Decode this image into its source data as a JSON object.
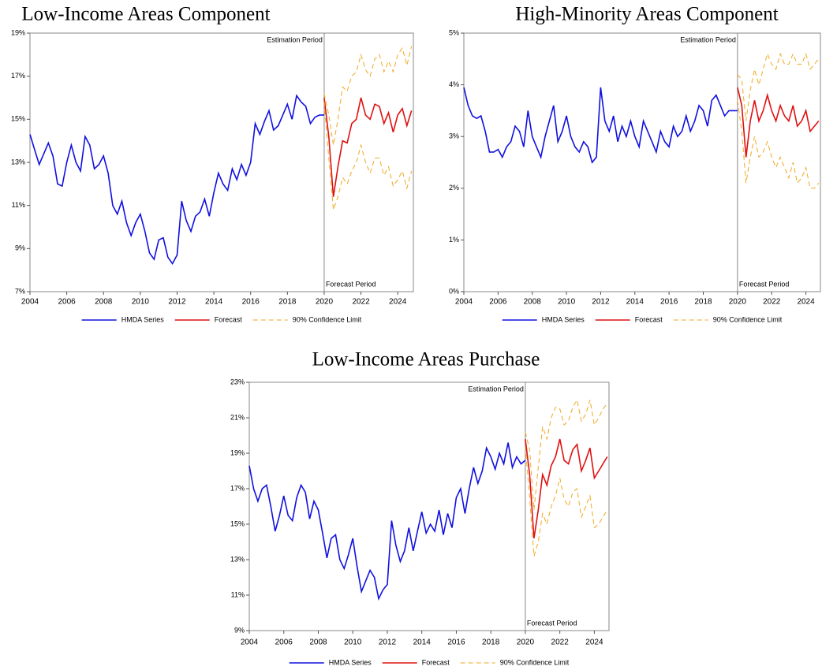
{
  "chart_data": [
    {
      "type": "line",
      "title": "Low-Income Areas Component",
      "xlim": [
        2004,
        2024.85
      ],
      "xticks": [
        2004,
        2006,
        2008,
        2010,
        2012,
        2014,
        2016,
        2018,
        2020,
        2022,
        2024
      ],
      "ylim": [
        7,
        19
      ],
      "yticks": [
        {
          "value": 7,
          "label": "7%"
        },
        {
          "value": 9,
          "label": "9%"
        },
        {
          "value": 11,
          "label": "11%"
        },
        {
          "value": 13,
          "label": "13%"
        },
        {
          "value": 15,
          "label": "15%"
        },
        {
          "value": 17,
          "label": "17%"
        },
        {
          "value": 19,
          "label": "19%"
        }
      ],
      "period_split": 2020,
      "annotations": [
        "Estimation Period",
        "Forecast Period"
      ],
      "series": [
        {
          "name": "HMDA Series",
          "color": "#1010e0",
          "style": "solid",
          "x": [
            2004,
            2004.25,
            2004.5,
            2004.75,
            2005,
            2005.25,
            2005.5,
            2005.75,
            2006,
            2006.25,
            2006.5,
            2006.75,
            2007,
            2007.25,
            2007.5,
            2007.75,
            2008,
            2008.25,
            2008.5,
            2008.75,
            2009,
            2009.25,
            2009.5,
            2009.75,
            2010,
            2010.25,
            2010.5,
            2010.75,
            2011,
            2011.25,
            2011.5,
            2011.75,
            2012,
            2012.25,
            2012.5,
            2012.75,
            2013,
            2013.25,
            2013.5,
            2013.75,
            2014,
            2014.25,
            2014.5,
            2014.75,
            2015,
            2015.25,
            2015.5,
            2015.75,
            2016,
            2016.25,
            2016.5,
            2016.75,
            2017,
            2017.25,
            2017.5,
            2017.75,
            2018,
            2018.25,
            2018.5,
            2018.75,
            2019,
            2019.25,
            2019.5,
            2019.75,
            2020
          ],
          "values": [
            14.3,
            13.6,
            12.9,
            13.4,
            13.9,
            13.3,
            12.0,
            11.9,
            13.0,
            13.8,
            13.0,
            12.6,
            14.2,
            13.8,
            12.7,
            12.9,
            13.3,
            12.5,
            11.0,
            10.6,
            11.2,
            10.2,
            9.6,
            10.2,
            10.6,
            9.8,
            8.8,
            8.5,
            9.4,
            9.5,
            8.6,
            8.3,
            8.7,
            11.2,
            10.3,
            9.8,
            10.5,
            10.7,
            11.3,
            10.5,
            11.6,
            12.5,
            12.0,
            11.7,
            12.7,
            12.2,
            12.9,
            12.4,
            13.0,
            14.8,
            14.3,
            14.9,
            15.4,
            14.5,
            14.7,
            15.2,
            15.7,
            15.0,
            16.1,
            15.8,
            15.6,
            14.8,
            15.1,
            15.2,
            15.2
          ]
        },
        {
          "name": "Forecast",
          "color": "#e01010",
          "style": "solid",
          "x": [
            2020,
            2020.25,
            2020.5,
            2020.75,
            2021,
            2021.25,
            2021.5,
            2021.75,
            2022,
            2022.25,
            2022.5,
            2022.75,
            2023,
            2023.25,
            2023.5,
            2023.75,
            2024,
            2024.25,
            2024.5,
            2024.75
          ],
          "values": [
            16.0,
            14.2,
            11.4,
            12.8,
            14.0,
            13.9,
            14.8,
            15.0,
            16.0,
            15.2,
            15.0,
            15.7,
            15.6,
            14.8,
            15.3,
            14.4,
            15.2,
            15.5,
            14.7,
            15.4
          ]
        },
        {
          "name": "90% Confidence Limit",
          "color": "#f0a820",
          "style": "dashed",
          "x": [
            2020,
            2020.25,
            2020.5,
            2020.75,
            2021,
            2021.25,
            2021.5,
            2021.75,
            2022,
            2022.25,
            2022.5,
            2022.75,
            2023,
            2023.25,
            2023.5,
            2023.75,
            2024,
            2024.25,
            2024.5,
            2024.75
          ],
          "values": [
            16.2,
            15.2,
            13.8,
            15.0,
            16.5,
            16.3,
            17.0,
            17.2,
            18.0,
            17.3,
            17.0,
            17.8,
            18.0,
            17.2,
            17.7,
            17.2,
            18.0,
            18.3,
            17.5,
            18.4
          ]
        },
        {
          "name": "90% Confidence Limit",
          "color": "#f0a820",
          "style": "dashed",
          "x": [
            2020,
            2020.25,
            2020.5,
            2020.75,
            2021,
            2021.25,
            2021.5,
            2021.75,
            2022,
            2022.25,
            2022.5,
            2022.75,
            2023,
            2023.25,
            2023.5,
            2023.75,
            2024,
            2024.25,
            2024.5,
            2024.75
          ],
          "values": [
            15.8,
            13.2,
            10.8,
            11.4,
            12.3,
            12.0,
            12.6,
            13.0,
            13.8,
            13.0,
            12.5,
            13.2,
            13.2,
            12.4,
            12.8,
            11.9,
            12.2,
            12.6,
            11.8,
            12.6
          ]
        }
      ]
    },
    {
      "type": "line",
      "title": "High-Minority Areas Component",
      "xlim": [
        2004,
        2024.85
      ],
      "xticks": [
        2004,
        2006,
        2008,
        2010,
        2012,
        2014,
        2016,
        2018,
        2020,
        2022,
        2024
      ],
      "ylim": [
        0,
        5
      ],
      "yticks": [
        {
          "value": 0,
          "label": "0%"
        },
        {
          "value": 1,
          "label": "1%"
        },
        {
          "value": 2,
          "label": "2%"
        },
        {
          "value": 3,
          "label": "3%"
        },
        {
          "value": 4,
          "label": "4%"
        },
        {
          "value": 5,
          "label": "5%"
        }
      ],
      "period_split": 2020,
      "annotations": [
        "Estimation Period",
        "Forecast Period"
      ],
      "series": [
        {
          "name": "HMDA Series",
          "color": "#1010e0",
          "style": "solid",
          "x": [
            2004,
            2004.25,
            2004.5,
            2004.75,
            2005,
            2005.25,
            2005.5,
            2005.75,
            2006,
            2006.25,
            2006.5,
            2006.75,
            2007,
            2007.25,
            2007.5,
            2007.75,
            2008,
            2008.25,
            2008.5,
            2008.75,
            2009,
            2009.25,
            2009.5,
            2009.75,
            2010,
            2010.25,
            2010.5,
            2010.75,
            2011,
            2011.25,
            2011.5,
            2011.75,
            2012,
            2012.25,
            2012.5,
            2012.75,
            2013,
            2013.25,
            2013.5,
            2013.75,
            2014,
            2014.25,
            2014.5,
            2014.75,
            2015,
            2015.25,
            2015.5,
            2015.75,
            2016,
            2016.25,
            2016.5,
            2016.75,
            2017,
            2017.25,
            2017.5,
            2017.75,
            2018,
            2018.25,
            2018.5,
            2018.75,
            2019,
            2019.25,
            2019.5,
            2019.75,
            2020
          ],
          "values": [
            3.95,
            3.6,
            3.4,
            3.35,
            3.4,
            3.1,
            2.7,
            2.7,
            2.75,
            2.6,
            2.8,
            2.9,
            3.2,
            3.1,
            2.8,
            3.5,
            3.0,
            2.8,
            2.6,
            3.0,
            3.3,
            3.6,
            2.9,
            3.1,
            3.4,
            3.0,
            2.8,
            2.7,
            2.9,
            2.8,
            2.5,
            2.6,
            3.95,
            3.3,
            3.1,
            3.4,
            2.9,
            3.2,
            3.0,
            3.3,
            3.0,
            2.8,
            3.3,
            3.1,
            2.9,
            2.7,
            3.1,
            2.9,
            2.8,
            3.2,
            3.0,
            3.1,
            3.4,
            3.1,
            3.3,
            3.6,
            3.5,
            3.2,
            3.7,
            3.8,
            3.6,
            3.4,
            3.5,
            3.5,
            3.5
          ]
        },
        {
          "name": "Forecast",
          "color": "#e01010",
          "style": "solid",
          "x": [
            2020,
            2020.25,
            2020.5,
            2020.75,
            2021,
            2021.25,
            2021.5,
            2021.75,
            2022,
            2022.25,
            2022.5,
            2022.75,
            2023,
            2023.25,
            2023.5,
            2023.75,
            2024,
            2024.25,
            2024.5,
            2024.75
          ],
          "values": [
            3.95,
            3.6,
            2.6,
            3.3,
            3.7,
            3.3,
            3.5,
            3.8,
            3.5,
            3.3,
            3.6,
            3.4,
            3.3,
            3.6,
            3.2,
            3.3,
            3.5,
            3.1,
            3.2,
            3.3
          ]
        },
        {
          "name": "90% Confidence Limit",
          "color": "#f0a820",
          "style": "dashed",
          "x": [
            2020,
            2020.25,
            2020.5,
            2020.75,
            2021,
            2021.25,
            2021.5,
            2021.75,
            2022,
            2022.25,
            2022.5,
            2022.75,
            2023,
            2023.25,
            2023.5,
            2023.75,
            2024,
            2024.25,
            2024.5,
            2024.75
          ],
          "values": [
            4.2,
            4.1,
            3.3,
            3.9,
            4.3,
            4.0,
            4.3,
            4.6,
            4.4,
            4.3,
            4.6,
            4.4,
            4.4,
            4.6,
            4.4,
            4.4,
            4.6,
            4.3,
            4.4,
            4.5
          ]
        },
        {
          "name": "90% Confidence Limit",
          "color": "#f0a820",
          "style": "dashed",
          "x": [
            2020,
            2020.25,
            2020.5,
            2020.75,
            2021,
            2021.25,
            2021.5,
            2021.75,
            2022,
            2022.25,
            2022.5,
            2022.75,
            2023,
            2023.25,
            2023.5,
            2023.75,
            2024,
            2024.25,
            2024.5,
            2024.75
          ],
          "values": [
            3.7,
            3.1,
            2.1,
            2.6,
            3.0,
            2.6,
            2.7,
            2.9,
            2.6,
            2.4,
            2.6,
            2.4,
            2.2,
            2.5,
            2.1,
            2.2,
            2.4,
            2.0,
            2.0,
            2.1
          ]
        }
      ]
    },
    {
      "type": "line",
      "title": "Low-Income Areas Purchase",
      "xlim": [
        2004,
        2024.85
      ],
      "xticks": [
        2004,
        2006,
        2008,
        2010,
        2012,
        2014,
        2016,
        2018,
        2020,
        2022,
        2024
      ],
      "ylim": [
        9,
        23
      ],
      "yticks": [
        {
          "value": 9,
          "label": "9%"
        },
        {
          "value": 11,
          "label": "11%"
        },
        {
          "value": 13,
          "label": "13%"
        },
        {
          "value": 15,
          "label": "15%"
        },
        {
          "value": 17,
          "label": "17%"
        },
        {
          "value": 19,
          "label": "19%"
        },
        {
          "value": 21,
          "label": "21%"
        },
        {
          "value": 23,
          "label": "23%"
        }
      ],
      "period_split": 2020,
      "annotations": [
        "Estimation Period",
        "Forecast Period"
      ],
      "series": [
        {
          "name": "HMDA Series",
          "color": "#1010e0",
          "style": "solid",
          "x": [
            2004,
            2004.25,
            2004.5,
            2004.75,
            2005,
            2005.25,
            2005.5,
            2005.75,
            2006,
            2006.25,
            2006.5,
            2006.75,
            2007,
            2007.25,
            2007.5,
            2007.75,
            2008,
            2008.25,
            2008.5,
            2008.75,
            2009,
            2009.25,
            2009.5,
            2009.75,
            2010,
            2010.25,
            2010.5,
            2010.75,
            2011,
            2011.25,
            2011.5,
            2011.75,
            2012,
            2012.25,
            2012.5,
            2012.75,
            2013,
            2013.25,
            2013.5,
            2013.75,
            2014,
            2014.25,
            2014.5,
            2014.75,
            2015,
            2015.25,
            2015.5,
            2015.75,
            2016,
            2016.25,
            2016.5,
            2016.75,
            2017,
            2017.25,
            2017.5,
            2017.75,
            2018,
            2018.25,
            2018.5,
            2018.75,
            2019,
            2019.25,
            2019.5,
            2019.75,
            2020
          ],
          "values": [
            18.3,
            17.0,
            16.3,
            17.0,
            17.2,
            16.0,
            14.6,
            15.5,
            16.6,
            15.5,
            15.2,
            16.5,
            17.2,
            16.8,
            15.3,
            16.3,
            15.8,
            14.5,
            13.1,
            14.2,
            14.4,
            13.0,
            12.5,
            13.3,
            14.2,
            12.6,
            11.2,
            11.8,
            12.4,
            12.0,
            10.8,
            11.3,
            11.6,
            15.2,
            13.8,
            12.9,
            13.5,
            14.8,
            13.5,
            14.6,
            15.7,
            14.5,
            15.0,
            14.6,
            15.8,
            14.4,
            15.6,
            14.8,
            16.5,
            17.0,
            15.6,
            17.0,
            18.2,
            17.3,
            18.0,
            19.3,
            18.8,
            18.1,
            19.0,
            18.4,
            19.6,
            18.2,
            18.8,
            18.4,
            18.6
          ]
        },
        {
          "name": "Forecast",
          "color": "#e01010",
          "style": "solid",
          "x": [
            2020,
            2020.25,
            2020.5,
            2020.75,
            2021,
            2021.25,
            2021.5,
            2021.75,
            2022,
            2022.25,
            2022.5,
            2022.75,
            2023,
            2023.25,
            2023.5,
            2023.75,
            2024,
            2024.25,
            2024.5,
            2024.75
          ],
          "values": [
            19.8,
            17.8,
            14.2,
            15.8,
            17.8,
            17.2,
            18.3,
            18.8,
            19.8,
            18.6,
            18.4,
            19.2,
            19.5,
            18.0,
            18.6,
            19.3,
            17.6,
            18.0,
            18.4,
            18.8
          ]
        },
        {
          "name": "90% Confidence Limit",
          "color": "#f0a820",
          "style": "dashed",
          "x": [
            2020,
            2020.25,
            2020.5,
            2020.75,
            2021,
            2021.25,
            2021.5,
            2021.75,
            2022,
            2022.25,
            2022.5,
            2022.75,
            2023,
            2023.25,
            2023.5,
            2023.75,
            2024,
            2024.25,
            2024.5,
            2024.75
          ],
          "values": [
            20.2,
            19.2,
            15.8,
            18.2,
            20.5,
            19.8,
            21.0,
            21.6,
            21.5,
            20.6,
            20.8,
            21.6,
            22.0,
            20.8,
            21.2,
            22.0,
            20.6,
            21.0,
            21.5,
            21.8
          ]
        },
        {
          "name": "90% Confidence Limit",
          "color": "#f0a820",
          "style": "dashed",
          "x": [
            2020,
            2020.25,
            2020.5,
            2020.75,
            2021,
            2021.25,
            2021.5,
            2021.75,
            2022,
            2022.25,
            2022.5,
            2022.75,
            2023,
            2023.25,
            2023.5,
            2023.75,
            2024,
            2024.25,
            2024.5,
            2024.75
          ],
          "values": [
            19.4,
            16.5,
            13.2,
            14.0,
            15.6,
            15.0,
            16.0,
            16.6,
            17.6,
            16.4,
            16.0,
            16.8,
            17.0,
            15.4,
            16.0,
            16.6,
            14.8,
            15.0,
            15.4,
            15.8
          ]
        }
      ]
    }
  ]
}
